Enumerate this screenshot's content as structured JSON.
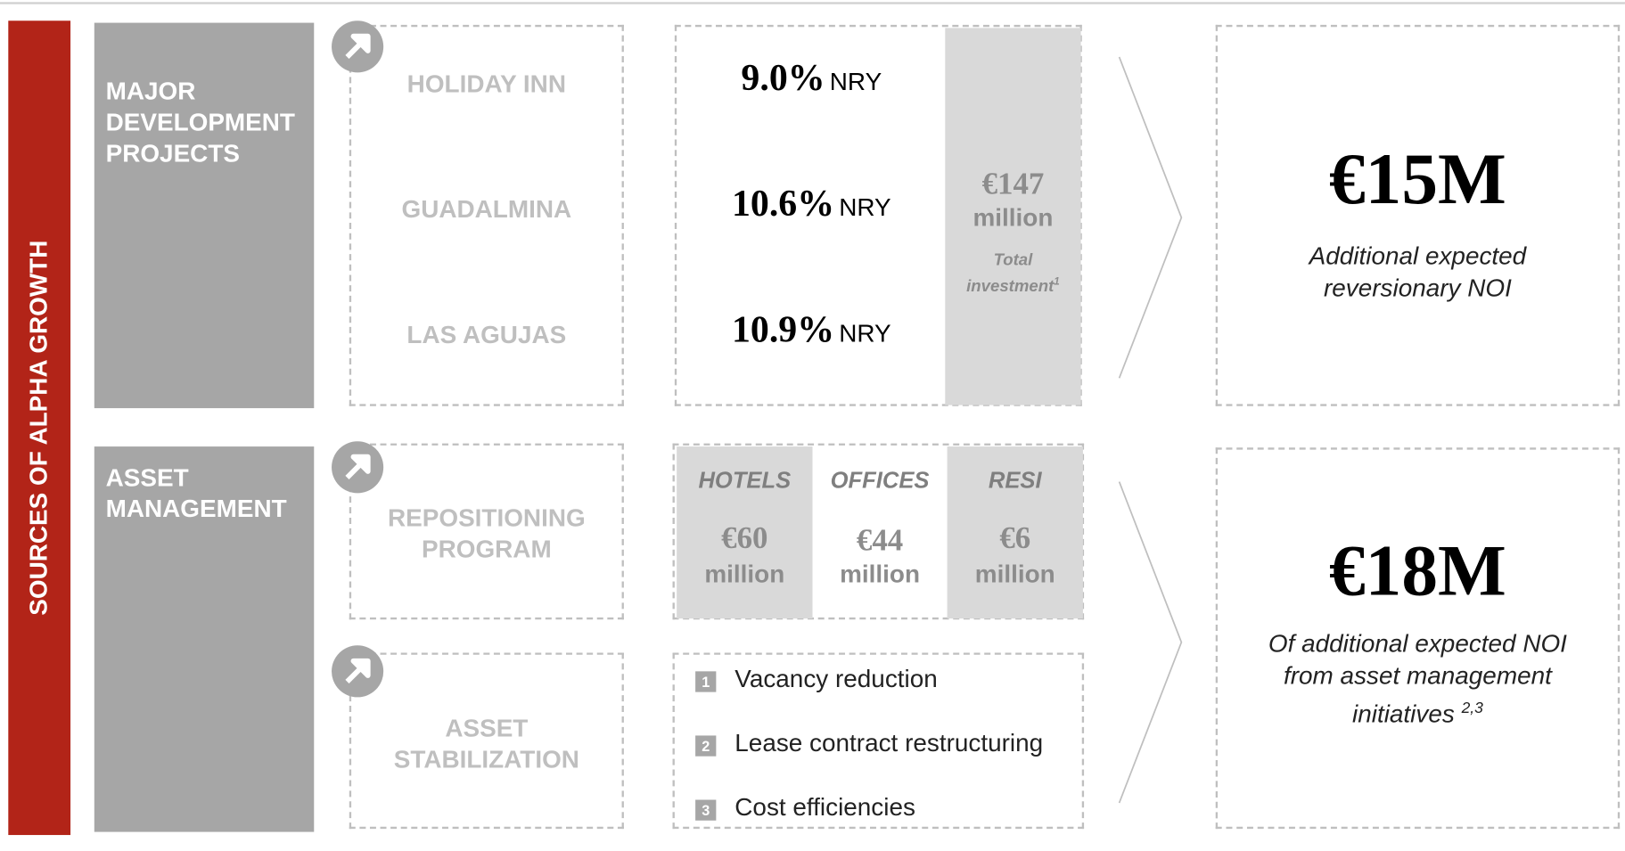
{
  "sidebar": "SOURCES OF ALPHA GROWTH",
  "development": {
    "title_lines": [
      "MAJOR",
      "DEVELOPMENT",
      "PROJECTS"
    ],
    "projects": [
      {
        "name": "HOLIDAY INN",
        "yield": "9.0%",
        "unit": "NRY"
      },
      {
        "name": "GUADALMINA",
        "yield": "10.6%",
        "unit": "NRY"
      },
      {
        "name": "LAS AGUJAS",
        "yield": "10.9%",
        "unit": "NRY"
      }
    ],
    "investment": {
      "amount": "€147",
      "unit": "million",
      "caption_lines": [
        "Total",
        "investment"
      ],
      "note": "1"
    },
    "result": {
      "value": "€15M",
      "caption_lines": [
        "Additional expected",
        "reversionary NOI"
      ]
    }
  },
  "asset_management": {
    "title_lines": [
      "ASSET",
      "MANAGEMENT"
    ],
    "repositioning": {
      "label_lines": [
        "REPOSITIONING",
        "PROGRAM"
      ],
      "columns": [
        {
          "name": "HOTELS",
          "amount": "€60",
          "unit": "million"
        },
        {
          "name": "OFFICES",
          "amount": "€44",
          "unit": "million"
        },
        {
          "name": "RESI",
          "amount": "€6",
          "unit": "million"
        }
      ]
    },
    "stabilization": {
      "label_lines": [
        "ASSET",
        "STABILIZATION"
      ],
      "items": [
        {
          "number": "1",
          "text": "Vacancy reduction"
        },
        {
          "number": "2",
          "text": "Lease contract restructuring"
        },
        {
          "number": "3",
          "text": "Cost efficiencies"
        }
      ]
    },
    "result": {
      "value": "€18M",
      "caption_lines": [
        "Of additional expected NOI",
        "from asset management",
        "initiatives"
      ],
      "note": "2,3"
    }
  }
}
